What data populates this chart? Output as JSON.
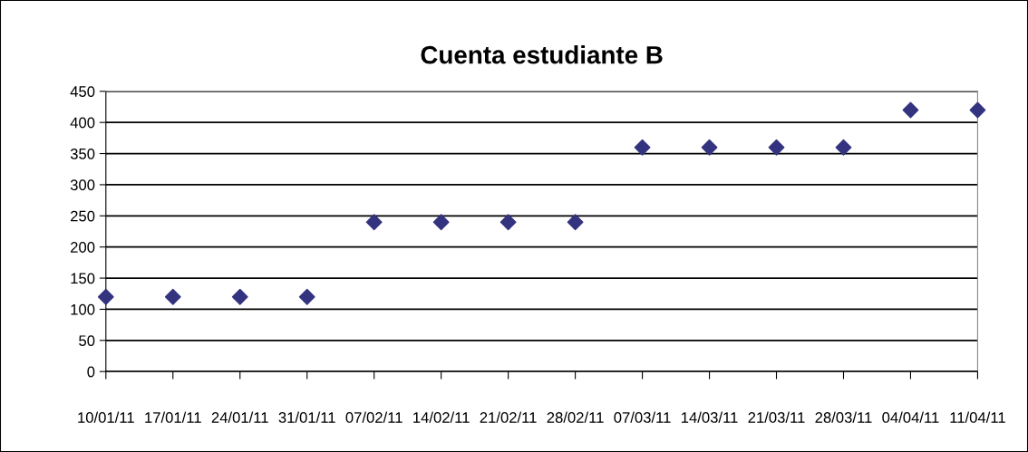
{
  "chart_data": {
    "type": "scatter",
    "title": "Cuenta estudiante B",
    "categories": [
      "10/01/11",
      "17/01/11",
      "24/01/11",
      "31/01/11",
      "07/02/11",
      "14/02/11",
      "21/02/11",
      "28/02/11",
      "07/03/11",
      "14/03/11",
      "21/03/11",
      "28/03/11",
      "04/04/11",
      "11/04/11"
    ],
    "values": [
      120,
      120,
      120,
      120,
      240,
      240,
      240,
      240,
      360,
      360,
      360,
      360,
      420,
      420
    ],
    "color": "#333380",
    "marker": "diamond",
    "ylim": [
      0,
      450
    ],
    "yticks": [
      0,
      50,
      100,
      150,
      200,
      250,
      300,
      350,
      400,
      450
    ],
    "grid": "y",
    "legend": false
  }
}
